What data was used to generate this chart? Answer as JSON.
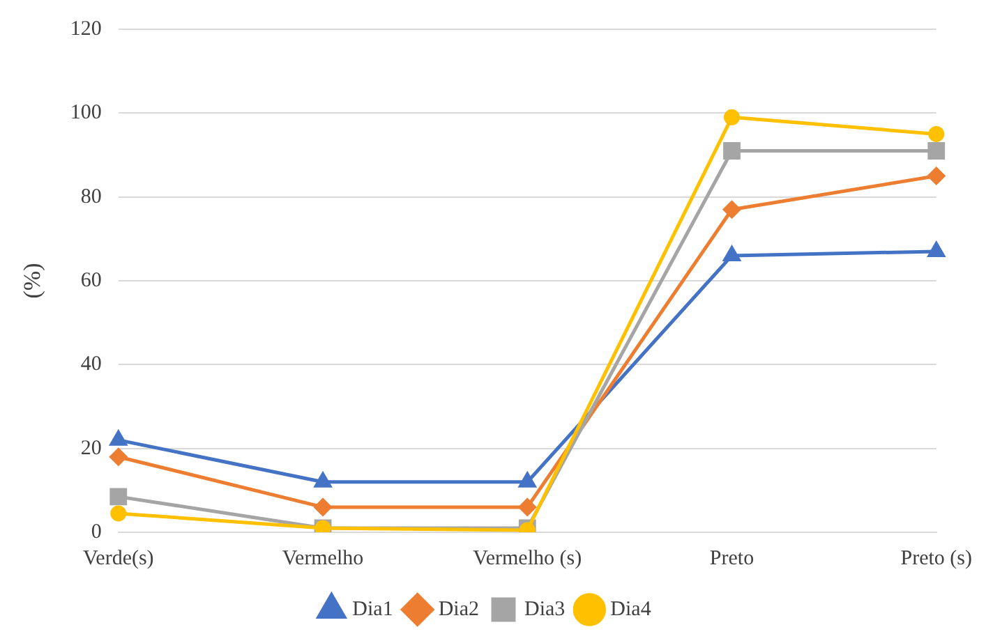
{
  "chart_data": {
    "type": "line",
    "ylabel": "(%)",
    "categories": [
      "Verde(s)",
      "Vermelho",
      "Vermelho (s)",
      "Preto",
      "Preto (s)"
    ],
    "series": [
      {
        "name": "Dia1",
        "color": "#4472c4",
        "marker": "triangle",
        "values": [
          22,
          12,
          12,
          66,
          67
        ]
      },
      {
        "name": "Dia2",
        "color": "#ed7d31",
        "marker": "diamond",
        "values": [
          18,
          6,
          6,
          77,
          85
        ]
      },
      {
        "name": "Dia3",
        "color": "#a5a5a5",
        "marker": "square",
        "values": [
          8.5,
          1,
          1,
          91,
          91
        ]
      },
      {
        "name": "Dia4",
        "color": "#ffc000",
        "marker": "circle",
        "values": [
          4.5,
          1,
          0.5,
          99,
          95
        ]
      }
    ],
    "ylim": [
      0,
      120
    ],
    "yticks": [
      0,
      20,
      40,
      60,
      80,
      100,
      120
    ],
    "grid": "y",
    "legend": "bottom"
  }
}
